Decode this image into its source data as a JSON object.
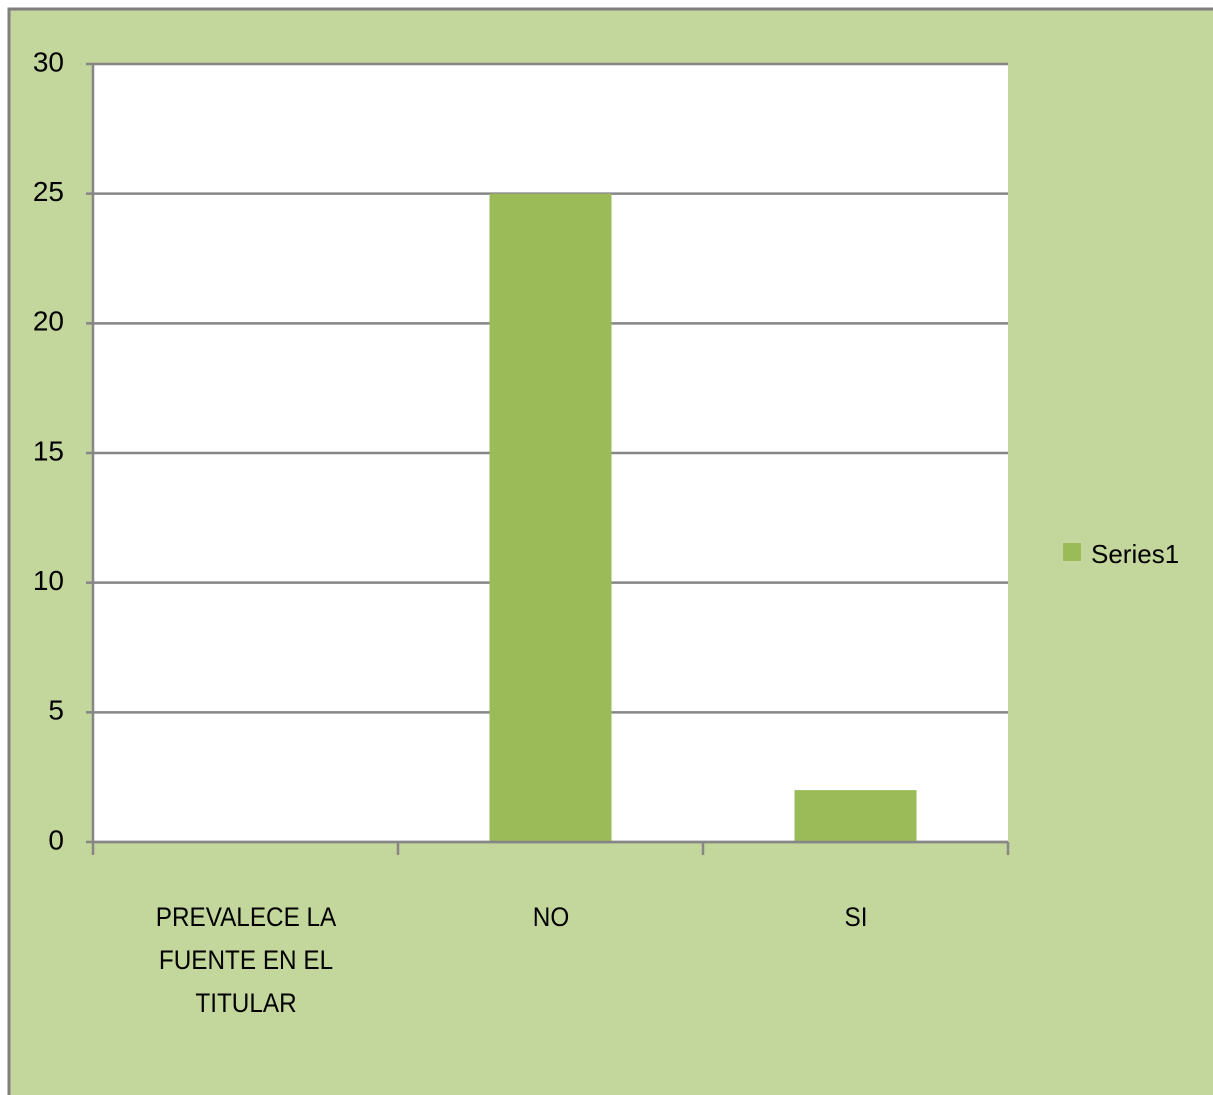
{
  "chart_data": {
    "type": "bar",
    "categories": [
      "PREVALECE LA FUENTE EN EL TITULAR",
      "NO",
      "SI"
    ],
    "series": [
      {
        "name": "Series1",
        "color": "#9bbb59",
        "values": [
          0,
          25,
          2
        ]
      }
    ],
    "ylim": [
      0,
      30
    ],
    "yticks": [
      0,
      5,
      10,
      15,
      20,
      25,
      30
    ],
    "grid": true,
    "legend": "right"
  }
}
